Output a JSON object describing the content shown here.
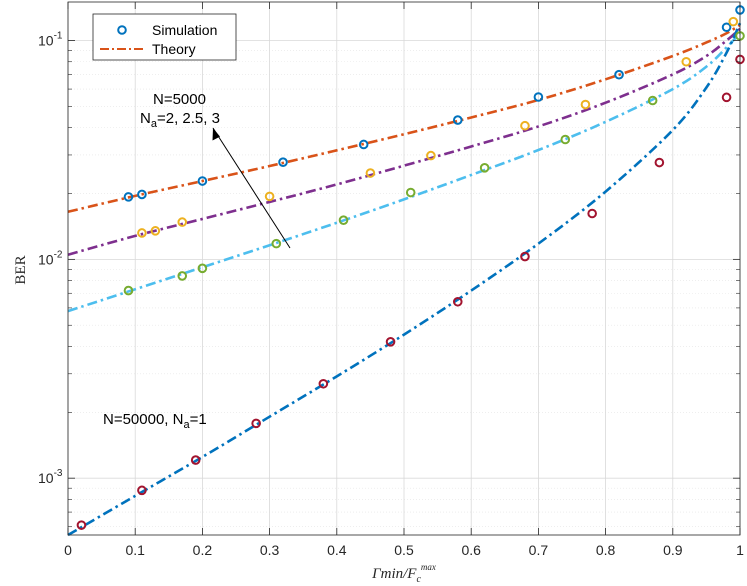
{
  "chart_data": {
    "type": "line",
    "title": "",
    "xlabel": "Γmin/F_c^max",
    "ylabel": "BER",
    "xlim": [
      0,
      1
    ],
    "ylim": [
      0.00055,
      0.15
    ],
    "yscale": "log",
    "grid": true,
    "minor_grid": true,
    "legend_position": "top-left",
    "x_ticks": [
      0,
      0.1,
      0.2,
      0.3,
      0.4,
      0.5,
      0.6,
      0.7,
      0.8,
      0.9,
      1
    ],
    "x_tick_labels": [
      "0",
      "0.1",
      "0.2",
      "0.3",
      "0.4",
      "0.5",
      "0.6",
      "0.7",
      "0.8",
      "0.9",
      "1"
    ],
    "y_ticks": [
      0.001,
      0.01,
      0.1
    ],
    "y_tick_labels": [
      {
        "base": "10",
        "exp": "-3"
      },
      {
        "base": "10",
        "exp": "-2"
      },
      {
        "base": "10",
        "exp": "-1"
      }
    ],
    "legend": [
      {
        "label": "Simulation",
        "style": "circle-marker"
      },
      {
        "label": "Theory",
        "style": "dash-dot-line"
      }
    ],
    "annotations": {
      "group1_line1": "N=5000",
      "group1_line2_pre": "N",
      "group1_line2_sub": "a",
      "group1_line2_post": "=2, 2.5, 3",
      "group2_pre": "N=50000, N",
      "group2_sub": "a",
      "group2_post": "=1"
    },
    "series": [
      {
        "name": "N=5000, Na=2",
        "color": "#d95319",
        "marker_color": "#0072bd",
        "theory_x": [
          0,
          0.1,
          0.2,
          0.3,
          0.4,
          0.5,
          0.6,
          0.7,
          0.8,
          0.9,
          0.95,
          0.98,
          1.0
        ],
        "theory_y": [
          0.0165,
          0.0195,
          0.0228,
          0.0267,
          0.0315,
          0.0373,
          0.0445,
          0.0535,
          0.0665,
          0.085,
          0.098,
          0.108,
          0.118
        ],
        "sim_x": [
          0.09,
          0.11,
          0.2,
          0.32,
          0.44,
          0.58,
          0.7,
          0.82,
          0.98,
          1.0
        ],
        "sim_y": [
          0.0193,
          0.0198,
          0.0228,
          0.0278,
          0.0335,
          0.0433,
          0.0552,
          0.0698,
          0.115,
          0.138
        ]
      },
      {
        "name": "N=5000, Na=2.5",
        "color": "#7e2f8e",
        "marker_color": "#edb120",
        "theory_x": [
          0,
          0.1,
          0.2,
          0.3,
          0.4,
          0.5,
          0.6,
          0.7,
          0.8,
          0.9,
          0.95,
          0.98,
          1.0
        ],
        "theory_y": [
          0.0105,
          0.0128,
          0.0153,
          0.0183,
          0.022,
          0.0268,
          0.0328,
          0.0405,
          0.052,
          0.07,
          0.085,
          0.1,
          0.113
        ],
        "sim_x": [
          0.11,
          0.13,
          0.17,
          0.3,
          0.45,
          0.54,
          0.68,
          0.77,
          0.92,
          0.99
        ],
        "sim_y": [
          0.0132,
          0.0135,
          0.0148,
          0.0194,
          0.0248,
          0.0298,
          0.0408,
          0.051,
          0.08,
          0.122
        ]
      },
      {
        "name": "N=5000, Na=3",
        "color": "#4dbeee",
        "marker_color": "#77ac30",
        "theory_x": [
          0,
          0.1,
          0.2,
          0.3,
          0.4,
          0.5,
          0.6,
          0.7,
          0.8,
          0.9,
          0.95,
          0.98,
          1.0
        ],
        "theory_y": [
          0.0058,
          0.0073,
          0.0092,
          0.0116,
          0.0147,
          0.0188,
          0.0243,
          0.0316,
          0.0425,
          0.06,
          0.076,
          0.093,
          0.108
        ],
        "sim_x": [
          0.09,
          0.17,
          0.2,
          0.31,
          0.41,
          0.51,
          0.62,
          0.74,
          0.87,
          1.0
        ],
        "sim_y": [
          0.0072,
          0.0084,
          0.0091,
          0.0118,
          0.0151,
          0.0202,
          0.0262,
          0.0353,
          0.0532,
          0.105
        ]
      },
      {
        "name": "N=50000, Na=1",
        "color": "#0072bd",
        "marker_color": "#a2142f",
        "theory_x": [
          0,
          0.1,
          0.2,
          0.3,
          0.4,
          0.5,
          0.6,
          0.7,
          0.8,
          0.9,
          0.95,
          0.98,
          1.0
        ],
        "theory_y": [
          0.00055,
          0.00083,
          0.00125,
          0.00191,
          0.00292,
          0.00453,
          0.0072,
          0.0118,
          0.0204,
          0.039,
          0.061,
          0.088,
          0.12
        ],
        "sim_x": [
          0.02,
          0.11,
          0.19,
          0.28,
          0.38,
          0.48,
          0.58,
          0.68,
          0.78,
          0.88,
          0.98,
          1.0
        ],
        "sim_y": [
          0.00061,
          0.00088,
          0.00121,
          0.00178,
          0.0027,
          0.0042,
          0.0064,
          0.0103,
          0.0162,
          0.0277,
          0.055,
          0.082
        ]
      }
    ]
  }
}
